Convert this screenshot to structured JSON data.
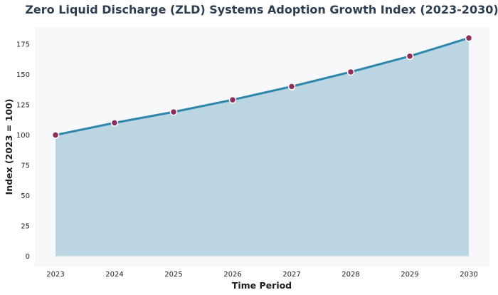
{
  "chart_data": {
    "type": "area",
    "title": "Zero Liquid Discharge (ZLD) Systems Adoption Growth Index (2023-2030)",
    "xlabel": "Time Period",
    "ylabel": "Index (2023 = 100)",
    "categories": [
      "2023",
      "2024",
      "2025",
      "2026",
      "2027",
      "2028",
      "2029",
      "2030"
    ],
    "series": [
      {
        "values": [
          100,
          110,
          119,
          129,
          140,
          152,
          165,
          180
        ]
      }
    ],
    "yticks": [
      0,
      25,
      50,
      75,
      100,
      125,
      150,
      175
    ],
    "ylim": [
      -8.5,
      189
    ],
    "grid": false,
    "legend": "none",
    "colors": {
      "plot_background": "#f7f8fa",
      "line": "#2e86ab",
      "fill": "#bcd5e2",
      "marker_fill": "#8e2c5a",
      "marker_stroke": "#ffffff",
      "title": "#2c3e50"
    }
  }
}
